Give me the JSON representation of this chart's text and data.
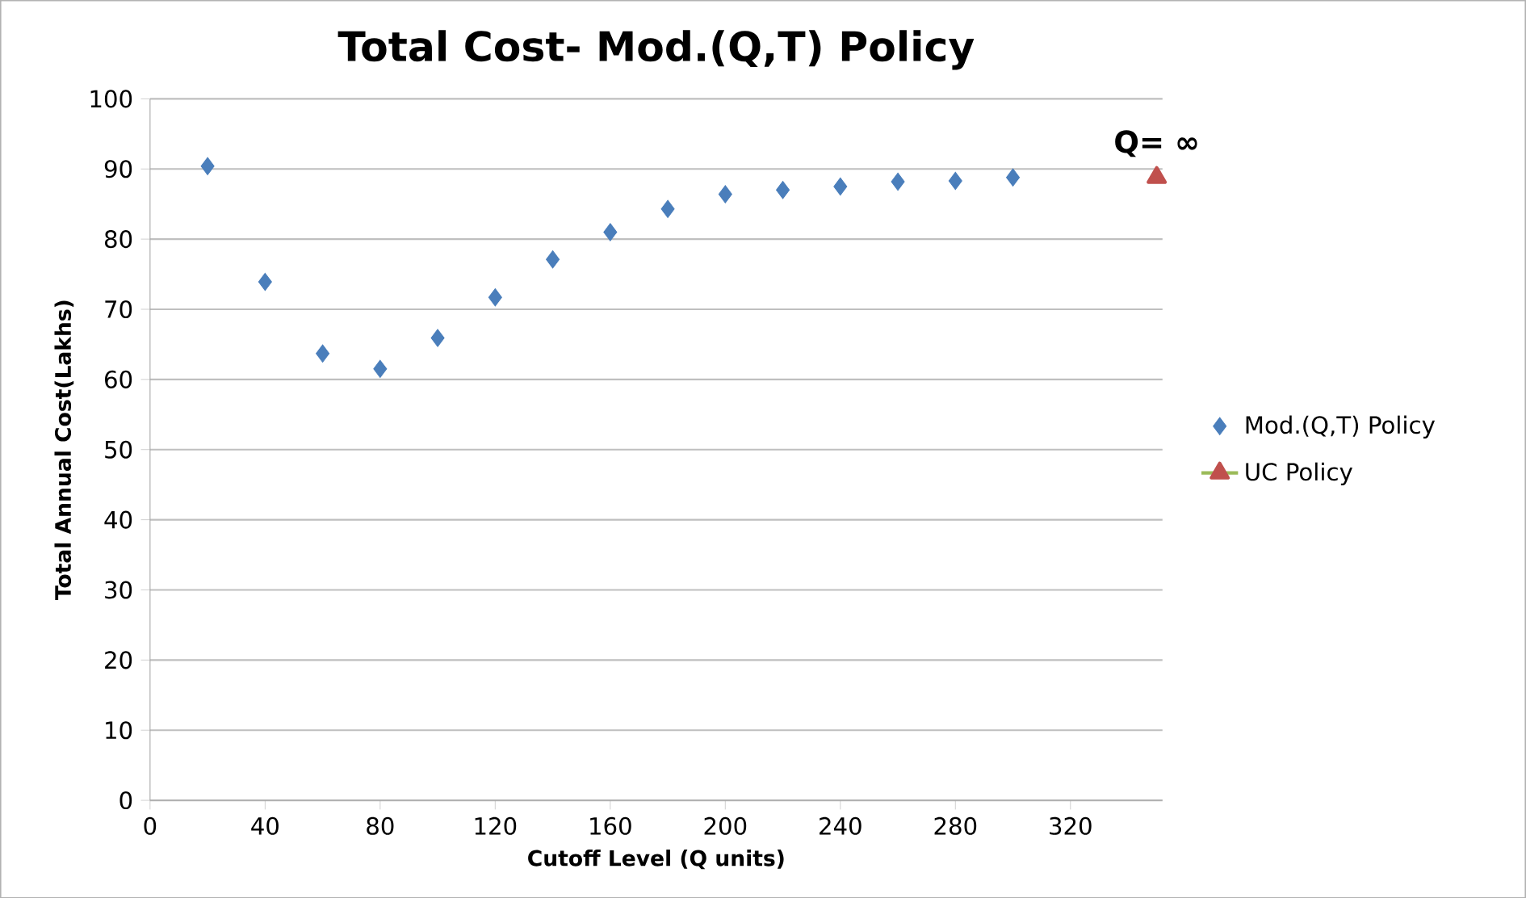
{
  "chart_data": {
    "type": "scatter",
    "title": "Total Cost- Mod.(Q,T) Policy",
    "xlabel": "Cutoff Level (Q units)",
    "ylabel": "Total Annual Cost(Lakhs)",
    "series": [
      {
        "name": "Mod.(Q,T) Policy",
        "color": "#4a7ebb",
        "marker": "diamond",
        "x": [
          20,
          40,
          60,
          80,
          100,
          120,
          140,
          160,
          180,
          200,
          220,
          240,
          260,
          280,
          300
        ],
        "values": [
          90.4,
          73.9,
          63.7,
          61.5,
          65.9,
          71.7,
          77.1,
          81,
          84.3,
          86.4,
          87,
          87.5,
          88.2,
          88.3,
          88.8
        ]
      },
      {
        "name": "UC Policy",
        "type": "line",
        "color": "#9bbb59",
        "colors": [
          "#c0504d"
        ],
        "marker": "triangle",
        "x": [
          350
        ],
        "values": [
          88.8
        ]
      }
    ],
    "annotations": [
      {
        "text": "Q= ∞",
        "x": 350,
        "y": 88.8
      }
    ],
    "xlim": [
      0,
      352
    ],
    "xticks": [
      0,
      40,
      80,
      120,
      160,
      200,
      240,
      280,
      320
    ],
    "ylim": [
      0,
      100
    ],
    "yticks": [
      0,
      10,
      20,
      30,
      40,
      50,
      60,
      70,
      80,
      90,
      100
    ],
    "grid": "y",
    "legend": "right"
  }
}
